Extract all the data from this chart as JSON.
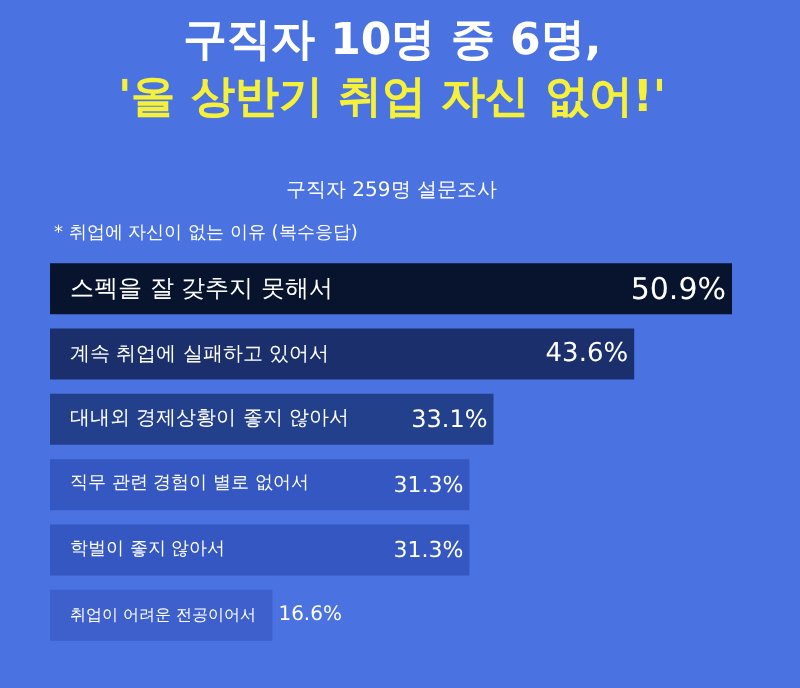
{
  "chart_data": {
    "type": "bar",
    "orientation": "horizontal",
    "title": "구직자 10명 중 6명,\n'올 상반기 취업 자신 없어!'",
    "subtitle": "구직자 259명 설문조사",
    "annotations": [
      "* 취업에 자신이 없는 이유 (복수응답)"
    ],
    "categories": [
      "스펙을 잘 갖추지 못해서",
      "계속 취업에 실패하고 있어서",
      "대내외 경제상황이 좋지 않아서",
      "직무 관련 경험이 별로 없어서",
      "학벌이 좋지 않아서",
      "취업이 어려운 전공이어서"
    ],
    "values": [
      50.9,
      43.6,
      33.1,
      31.3,
      31.3,
      16.6
    ],
    "value_labels": [
      "50.9%",
      "43.6%",
      "33.1%",
      "31.3%",
      "31.3%",
      "16.6%"
    ],
    "colors": [
      "#08142e",
      "#1b2f6c",
      "#23408c",
      "#3557c2",
      "#3557c2",
      "#3d60cd"
    ]
  }
}
